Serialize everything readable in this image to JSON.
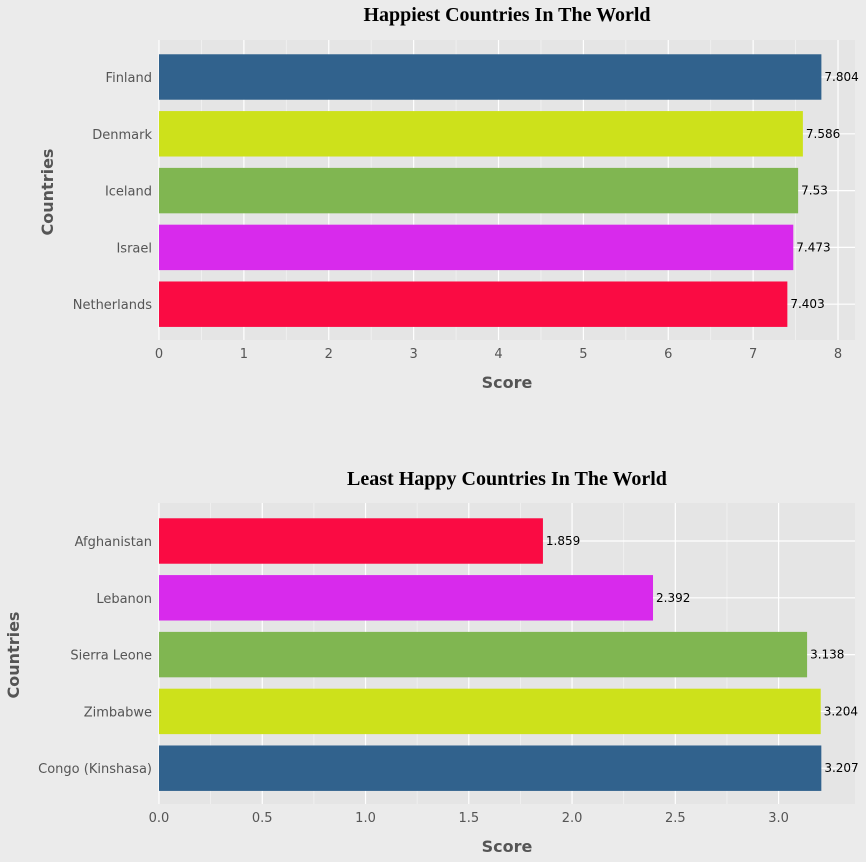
{
  "chart_data": [
    {
      "type": "bar",
      "orientation": "horizontal",
      "title": "Happiest Countries In The World",
      "xlabel": "Score",
      "ylabel": "Countries",
      "xlim": [
        0,
        8.2
      ],
      "xticks": [
        0,
        1,
        2,
        3,
        4,
        5,
        6,
        7,
        8
      ],
      "xtick_labels": [
        "0",
        "1",
        "2",
        "3",
        "4",
        "5",
        "6",
        "7",
        "8"
      ],
      "grid": true,
      "categories": [
        "Finland",
        "Denmark",
        "Iceland",
        "Israel",
        "Netherlands"
      ],
      "values": [
        7.804,
        7.586,
        7.53,
        7.473,
        7.403
      ],
      "value_labels": [
        "7.804",
        "7.586",
        "7.53",
        "7.473",
        "7.403"
      ],
      "colors": [
        "#31628d",
        "#cde11b",
        "#80b651",
        "#d82aec",
        "#fa0b43"
      ]
    },
    {
      "type": "bar",
      "orientation": "horizontal",
      "title": "Least Happy Countries In The World",
      "xlabel": "Score",
      "ylabel": "Countries",
      "xlim": [
        0,
        3.37
      ],
      "xticks": [
        0,
        0.5,
        1.0,
        1.5,
        2.0,
        2.5,
        3.0
      ],
      "xtick_labels": [
        "0.0",
        "0.5",
        "1.0",
        "1.5",
        "2.0",
        "2.5",
        "3.0"
      ],
      "grid": true,
      "categories": [
        "Afghanistan",
        "Lebanon",
        "Sierra Leone",
        "Zimbabwe",
        "Congo (Kinshasa)"
      ],
      "values": [
        1.859,
        2.392,
        3.138,
        3.204,
        3.207
      ],
      "value_labels": [
        "1.859",
        "2.392",
        "3.138",
        "3.204",
        "3.207"
      ],
      "colors": [
        "#fa0b43",
        "#d82aec",
        "#80b651",
        "#cde11b",
        "#31628d"
      ]
    }
  ]
}
